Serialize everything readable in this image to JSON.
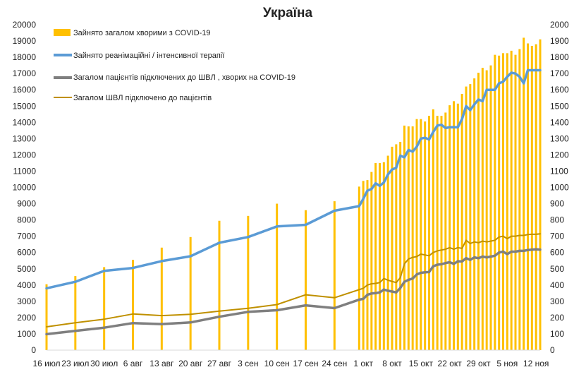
{
  "chart_data": {
    "type": "bar",
    "title": "Україна",
    "ylim_left": [
      0,
      20000
    ],
    "ylim_right": [
      0,
      2000
    ],
    "y_ticks_left": [
      "0",
      "1000",
      "2000",
      "3000",
      "4000",
      "5000",
      "6000",
      "7000",
      "8000",
      "9000",
      "10000",
      "11000",
      "12000",
      "13000",
      "14000",
      "15000",
      "16000",
      "17000",
      "18000",
      "19000",
      "20000"
    ],
    "y_ticks_right": [
      "0",
      "100",
      "200",
      "300",
      "400",
      "500",
      "600",
      "700",
      "800",
      "900",
      "1000",
      "1100",
      "1200",
      "1300",
      "1400",
      "1500",
      "1600",
      "1700",
      "1800",
      "1900",
      "2000"
    ],
    "x_tick_labels": [
      {
        "date": "2020-07-16",
        "label": "16 июл"
      },
      {
        "date": "2020-07-23",
        "label": "23 июл"
      },
      {
        "date": "2020-07-30",
        "label": "30 июл"
      },
      {
        "date": "2020-08-06",
        "label": "6 авг"
      },
      {
        "date": "2020-08-13",
        "label": "13 авг"
      },
      {
        "date": "2020-08-20",
        "label": "20 авг"
      },
      {
        "date": "2020-08-27",
        "label": "27 авг"
      },
      {
        "date": "2020-09-03",
        "label": "3 сен"
      },
      {
        "date": "2020-09-10",
        "label": "10 сен"
      },
      {
        "date": "2020-09-17",
        "label": "17 сен"
      },
      {
        "date": "2020-09-24",
        "label": "24 сен"
      },
      {
        "date": "2020-10-01",
        "label": "1 окт"
      },
      {
        "date": "2020-10-08",
        "label": "8 окт"
      },
      {
        "date": "2020-10-15",
        "label": "15 окт"
      },
      {
        "date": "2020-10-22",
        "label": "22 окт"
      },
      {
        "date": "2020-10-29",
        "label": "29 окт"
      },
      {
        "date": "2020-11-05",
        "label": "5 ноя"
      },
      {
        "date": "2020-11-12",
        "label": "12 ноя"
      }
    ],
    "legend_position": "top-left",
    "grid": false,
    "colors": {
      "bars": "#FFC000",
      "icu": "#5B9BD5",
      "patients_ventilated": "#7F7F7F",
      "ventilators_connected": "#BF9000"
    },
    "series": [
      {
        "name": "Зайнято загалом хворими з COVID-19",
        "kind": "bar",
        "axis": "left",
        "x": [
          "2020-07-16",
          "2020-07-23",
          "2020-07-30",
          "2020-08-06",
          "2020-08-13",
          "2020-08-20",
          "2020-08-27",
          "2020-09-03",
          "2020-09-10",
          "2020-09-17",
          "2020-09-24",
          "2020-09-30",
          "2020-10-01",
          "2020-10-02",
          "2020-10-03",
          "2020-10-04",
          "2020-10-05",
          "2020-10-06",
          "2020-10-07",
          "2020-10-08",
          "2020-10-09",
          "2020-10-10",
          "2020-10-11",
          "2020-10-12",
          "2020-10-13",
          "2020-10-14",
          "2020-10-15",
          "2020-10-16",
          "2020-10-17",
          "2020-10-18",
          "2020-10-19",
          "2020-10-20",
          "2020-10-21",
          "2020-10-22",
          "2020-10-23",
          "2020-10-24",
          "2020-10-25",
          "2020-10-26",
          "2020-10-27",
          "2020-10-28",
          "2020-10-29",
          "2020-10-30",
          "2020-10-31",
          "2020-11-01",
          "2020-11-02",
          "2020-11-03",
          "2020-11-04",
          "2020-11-05",
          "2020-11-06",
          "2020-11-07",
          "2020-11-08",
          "2020-11-09",
          "2020-11-10",
          "2020-11-11",
          "2020-11-12",
          "2020-11-13"
        ],
        "values": [
          4050,
          4550,
          5100,
          5550,
          6300,
          6950,
          7950,
          8250,
          9000,
          8600,
          9150,
          10050,
          10400,
          10450,
          10950,
          11500,
          11500,
          11550,
          11950,
          12500,
          12650,
          12800,
          13800,
          13750,
          13750,
          14200,
          14200,
          14050,
          14400,
          14800,
          14400,
          14400,
          14600,
          15050,
          15300,
          15150,
          15750,
          16200,
          16350,
          16700,
          17050,
          17350,
          17200,
          17500,
          18150,
          18100,
          18250,
          18250,
          18400,
          18150,
          18500,
          19200,
          18850,
          18700,
          18800,
          19100
        ]
      },
      {
        "name": "Зайнято реанімаційні / інтенсивної терапії",
        "kind": "line",
        "axis": "right",
        "x": [
          "2020-07-16",
          "2020-07-23",
          "2020-07-30",
          "2020-08-06",
          "2020-08-13",
          "2020-08-20",
          "2020-08-27",
          "2020-09-03",
          "2020-09-10",
          "2020-09-17",
          "2020-09-24",
          "2020-09-30",
          "2020-10-01",
          "2020-10-02",
          "2020-10-03",
          "2020-10-04",
          "2020-10-05",
          "2020-10-06",
          "2020-10-07",
          "2020-10-08",
          "2020-10-09",
          "2020-10-10",
          "2020-10-11",
          "2020-10-12",
          "2020-10-13",
          "2020-10-14",
          "2020-10-15",
          "2020-10-16",
          "2020-10-17",
          "2020-10-18",
          "2020-10-19",
          "2020-10-20",
          "2020-10-21",
          "2020-10-22",
          "2020-10-23",
          "2020-10-24",
          "2020-10-25",
          "2020-10-26",
          "2020-10-27",
          "2020-10-28",
          "2020-10-29",
          "2020-10-30",
          "2020-10-31",
          "2020-11-01",
          "2020-11-02",
          "2020-11-03",
          "2020-11-04",
          "2020-11-05",
          "2020-11-06",
          "2020-11-07",
          "2020-11-08",
          "2020-11-09",
          "2020-11-10",
          "2020-11-11",
          "2020-11-12",
          "2020-11-13"
        ],
        "values": [
          380,
          420,
          487,
          505,
          547,
          577,
          660,
          695,
          760,
          770,
          857,
          885,
          930,
          980,
          990,
          1025,
          1010,
          1030,
          1080,
          1110,
          1120,
          1195,
          1185,
          1230,
          1220,
          1250,
          1300,
          1305,
          1295,
          1340,
          1380,
          1385,
          1365,
          1370,
          1370,
          1370,
          1420,
          1500,
          1475,
          1510,
          1540,
          1530,
          1600,
          1600,
          1600,
          1640,
          1650,
          1680,
          1705,
          1700,
          1680,
          1640,
          1720,
          1720,
          1720,
          1720
        ]
      },
      {
        "name": "Загалом пацієнтів підключених до ШВЛ , хворих на COVID-19",
        "kind": "line",
        "axis": "right",
        "x": [
          "2020-07-16",
          "2020-07-23",
          "2020-07-30",
          "2020-08-06",
          "2020-08-13",
          "2020-08-20",
          "2020-08-27",
          "2020-09-03",
          "2020-09-10",
          "2020-09-17",
          "2020-09-24",
          "2020-09-30",
          "2020-10-01",
          "2020-10-02",
          "2020-10-03",
          "2020-10-04",
          "2020-10-05",
          "2020-10-06",
          "2020-10-07",
          "2020-10-08",
          "2020-10-09",
          "2020-10-10",
          "2020-10-11",
          "2020-10-12",
          "2020-10-13",
          "2020-10-14",
          "2020-10-15",
          "2020-10-16",
          "2020-10-17",
          "2020-10-18",
          "2020-10-19",
          "2020-10-20",
          "2020-10-21",
          "2020-10-22",
          "2020-10-23",
          "2020-10-24",
          "2020-10-25",
          "2020-10-26",
          "2020-10-27",
          "2020-10-28",
          "2020-10-29",
          "2020-10-30",
          "2020-10-31",
          "2020-11-01",
          "2020-11-02",
          "2020-11-03",
          "2020-11-04",
          "2020-11-05",
          "2020-11-06",
          "2020-11-07",
          "2020-11-08",
          "2020-11-09",
          "2020-11-10",
          "2020-11-11",
          "2020-11-12",
          "2020-11-13"
        ],
        "values": [
          98,
          118,
          138,
          166,
          160,
          170,
          205,
          235,
          245,
          275,
          258,
          310,
          315,
          340,
          348,
          350,
          355,
          372,
          365,
          360,
          355,
          382,
          420,
          432,
          440,
          465,
          475,
          478,
          480,
          515,
          525,
          528,
          535,
          540,
          530,
          546,
          545,
          565,
          555,
          570,
          565,
          575,
          570,
          575,
          580,
          600,
          605,
          590,
          605,
          605,
          610,
          610,
          615,
          618,
          620,
          618
        ]
      },
      {
        "name": "Загалом ШВЛ  підключено до пацієнтів",
        "kind": "line",
        "axis": "right",
        "x": [
          "2020-07-16",
          "2020-07-23",
          "2020-07-30",
          "2020-08-06",
          "2020-08-13",
          "2020-08-20",
          "2020-08-27",
          "2020-09-03",
          "2020-09-10",
          "2020-09-17",
          "2020-09-24",
          "2020-09-30",
          "2020-10-01",
          "2020-10-02",
          "2020-10-03",
          "2020-10-04",
          "2020-10-05",
          "2020-10-06",
          "2020-10-07",
          "2020-10-08",
          "2020-10-09",
          "2020-10-10",
          "2020-10-11",
          "2020-10-12",
          "2020-10-13",
          "2020-10-14",
          "2020-10-15",
          "2020-10-16",
          "2020-10-17",
          "2020-10-18",
          "2020-10-19",
          "2020-10-20",
          "2020-10-21",
          "2020-10-22",
          "2020-10-23",
          "2020-10-24",
          "2020-10-25",
          "2020-10-26",
          "2020-10-27",
          "2020-10-28",
          "2020-10-29",
          "2020-10-30",
          "2020-10-31",
          "2020-11-01",
          "2020-11-02",
          "2020-11-03",
          "2020-11-04",
          "2020-11-05",
          "2020-11-06",
          "2020-11-07",
          "2020-11-08",
          "2020-11-09",
          "2020-11-10",
          "2020-11-11",
          "2020-11-12",
          "2020-11-13"
        ],
        "values": [
          143,
          168,
          190,
          222,
          212,
          220,
          240,
          257,
          280,
          340,
          322,
          372,
          380,
          400,
          408,
          410,
          415,
          440,
          430,
          422,
          415,
          445,
          530,
          560,
          570,
          575,
          590,
          585,
          580,
          600,
          610,
          615,
          620,
          630,
          620,
          630,
          625,
          675,
          655,
          665,
          660,
          670,
          665,
          670,
          675,
          695,
          700,
          685,
          700,
          700,
          705,
          705,
          710,
          712,
          712,
          715
        ]
      }
    ]
  }
}
